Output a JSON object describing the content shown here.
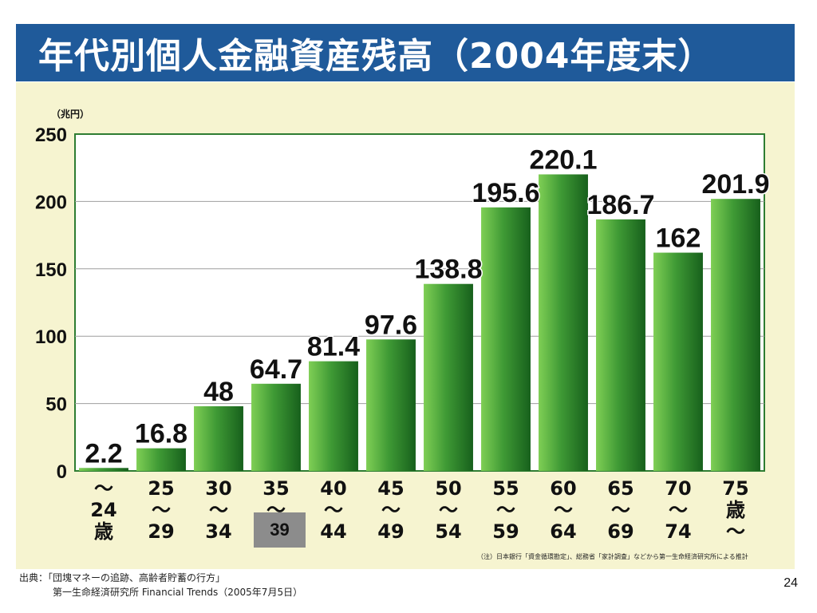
{
  "slide": {
    "title": "年代別個人金融資産残高（2004年度末）",
    "note": "（注）日本銀行「資金循環勘定」、総務省「家計調査」などから第一生命経済研究所による推計",
    "source_line1": "出典：「団塊マネーの追跡、高齢者貯蓄の行方」",
    "source_line2": "第一生命経済研究所 Financial Trends（2005年7月5日）",
    "page_number": "24",
    "overlay_label": "39"
  },
  "colors": {
    "title_bg": "#1f5a9a",
    "panel_bg": "#f6f4d0",
    "bar_dark": "#1d6b21",
    "bar_light": "#6cbf4a",
    "axis": "#2e7d32"
  },
  "chart_data": {
    "type": "bar",
    "ylabel": "（兆円）",
    "ylim": [
      0,
      250
    ],
    "yticks": [
      0,
      50,
      100,
      150,
      200,
      250
    ],
    "grid": true,
    "categories": [
      [
        "〜",
        "24",
        "歳"
      ],
      [
        "25",
        "〜",
        "29"
      ],
      [
        "30",
        "〜",
        "34"
      ],
      [
        "35",
        "〜",
        ""
      ],
      [
        "40",
        "〜",
        "44"
      ],
      [
        "45",
        "〜",
        "49"
      ],
      [
        "50",
        "〜",
        "54"
      ],
      [
        "55",
        "〜",
        "59"
      ],
      [
        "60",
        "〜",
        "64"
      ],
      [
        "65",
        "〜",
        "69"
      ],
      [
        "70",
        "〜",
        "74"
      ],
      [
        "75",
        "歳",
        "〜"
      ]
    ],
    "values": [
      2.2,
      16.8,
      48,
      64.7,
      81.4,
      97.6,
      138.8,
      195.6,
      220.1,
      186.7,
      162,
      201.9
    ],
    "labels": [
      "2.2",
      "16.8",
      "48",
      "64.7",
      "81.4",
      "97.6",
      "138.8",
      "195.6",
      "220.1",
      "186.7",
      "162",
      "201.9"
    ]
  }
}
